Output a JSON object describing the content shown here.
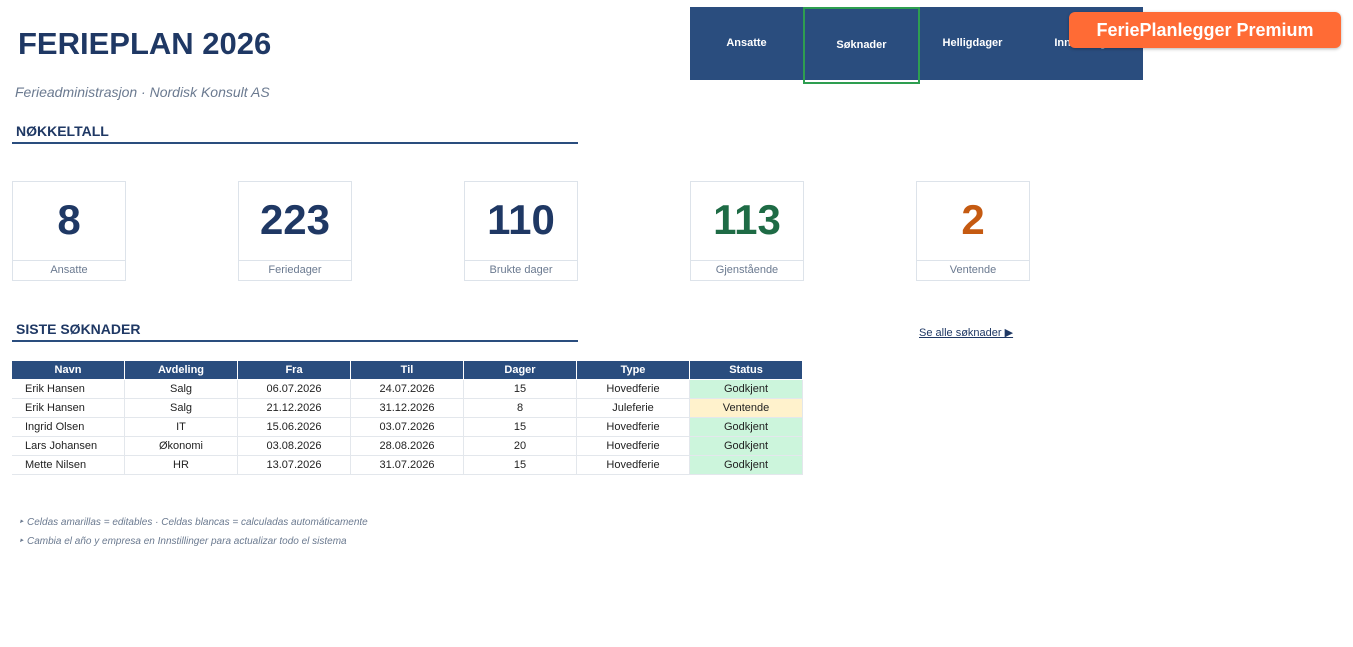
{
  "header": {
    "title": "FERIEPLAN 2026",
    "subtitle": "Ferieadministrasjon · Nordisk Konsult AS"
  },
  "nav": {
    "items": [
      "Ansatte",
      "Søknader",
      "Helligdager",
      "Innstillinger"
    ],
    "active": 1
  },
  "badge": "FeriePlanlegger Premium",
  "kpi": {
    "title": "NØKKELTALL",
    "cards": [
      {
        "value": 8,
        "label": "Ansatte",
        "color": "#1f3864"
      },
      {
        "value": 223,
        "label": "Feriedager",
        "color": "#1f3864"
      },
      {
        "value": 110,
        "label": "Brukte dager",
        "color": "#1f3864"
      },
      {
        "value": 113,
        "label": "Gjenstående",
        "color": "#1e6b45"
      },
      {
        "value": 2,
        "label": "Ventende",
        "color": "#c55a11"
      }
    ]
  },
  "recent": {
    "title": "SISTE SØKNADER",
    "link": "Se alle søknader ▶"
  },
  "table": {
    "headers": [
      "Navn",
      "Avdeling",
      "Fra",
      "Til",
      "Dager",
      "Type",
      "Status"
    ],
    "rows": [
      [
        "Erik Hansen",
        "Salg",
        "06.07.2026",
        "24.07.2026",
        15,
        "Hovedferie",
        "Godkjent"
      ],
      [
        "Erik Hansen",
        "Salg",
        "21.12.2026",
        "31.12.2026",
        8,
        "Juleferie",
        "Ventende"
      ],
      [
        "Ingrid Olsen",
        "IT",
        "15.06.2026",
        "03.07.2026",
        15,
        "Hovedferie",
        "Godkjent"
      ],
      [
        "Lars Johansen",
        "Økonomi",
        "03.08.2026",
        "28.08.2026",
        20,
        "Hovedferie",
        "Godkjent"
      ],
      [
        "Mette Nilsen",
        "HR",
        "13.07.2026",
        "31.07.2026",
        15,
        "Hovedferie",
        "Godkjent"
      ]
    ],
    "status_colors": [
      "#ccf5dc",
      "#fff2cc",
      "#ccf5dc",
      "#ccf5dc",
      "#ccf5dc"
    ]
  },
  "notes": [
    "Celdas amarillas = editables · Celdas blancas = calculadas automáticamente",
    "Cambia el año y empresa en Innstillinger para actualizar todo el sistema"
  ]
}
